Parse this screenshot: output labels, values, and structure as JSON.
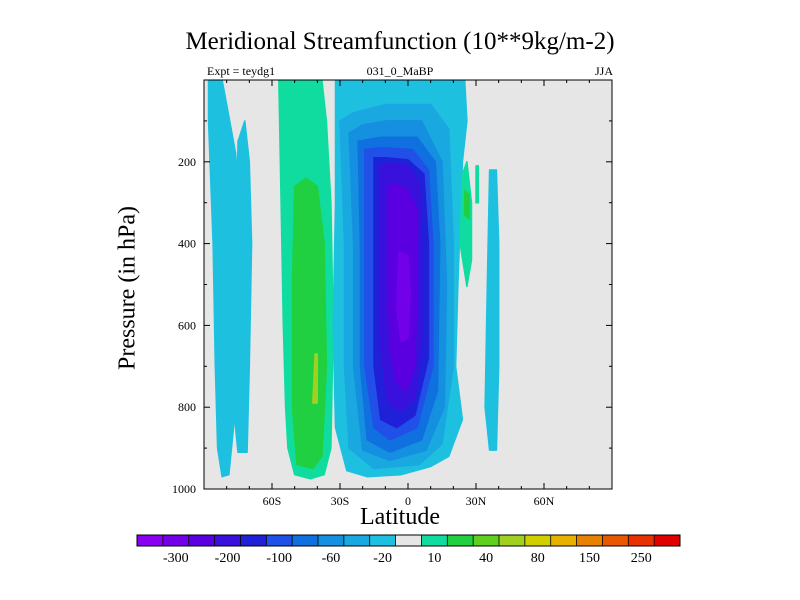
{
  "chart_data": {
    "type": "heatmap",
    "title": "Meridional Streamfunction (10**9kg/m-2)",
    "subtitle_left": "Expt = teydg1",
    "subtitle_center": "031_0_MaBP",
    "subtitle_right": "JJA",
    "xlabel": "Latitude",
    "ylabel": "Pressure (in hPa)",
    "x_range": [
      -90,
      90
    ],
    "y_range": [
      1000,
      0
    ],
    "x_ticks": [
      {
        "value": -60,
        "label": "60S"
      },
      {
        "value": -30,
        "label": "30S"
      },
      {
        "value": 0,
        "label": "0"
      },
      {
        "value": 30,
        "label": "30N"
      },
      {
        "value": 60,
        "label": "60N"
      }
    ],
    "y_ticks": [
      {
        "value": 200,
        "label": "200"
      },
      {
        "value": 400,
        "label": "400"
      },
      {
        "value": 600,
        "label": "600"
      },
      {
        "value": 800,
        "label": "800"
      },
      {
        "value": 1000,
        "label": "1000"
      }
    ],
    "colorbar": {
      "colors": [
        "#8a00f0",
        "#7200e8",
        "#5a00e0",
        "#3a10dc",
        "#2020d8",
        "#2050e8",
        "#1070e0",
        "#1590e0",
        "#1aa8e0",
        "#1ec0e0",
        "#e6e6e6",
        "#10dca0",
        "#20d040",
        "#60d020",
        "#a0d020",
        "#d0d000",
        "#e8b000",
        "#e88000",
        "#e85800",
        "#e83000",
        "#e00000"
      ],
      "labels": [
        "-300",
        "-200",
        "-100",
        "-60",
        "-20",
        "10",
        "40",
        "80",
        "150",
        "250"
      ]
    },
    "regions": [
      {
        "name": "sh-ferrel-cyan",
        "level": 1,
        "color": "#1ec0e0",
        "outline": [
          [
            -88,
            100
          ],
          [
            -86,
            400
          ],
          [
            -85,
            700
          ],
          [
            -84,
            900
          ],
          [
            -82,
            970
          ],
          [
            -79,
            965
          ],
          [
            -77,
            850
          ],
          [
            -75,
            600
          ],
          [
            -74,
            350
          ],
          [
            -76,
            180
          ],
          [
            -80,
            60
          ],
          [
            -82,
            0
          ],
          [
            -88,
            0
          ]
        ]
      },
      {
        "name": "sh-ferrel-cyan-2",
        "level": 1,
        "color": "#1ec0e0",
        "outline": [
          [
            -75,
            150
          ],
          [
            -76,
            500
          ],
          [
            -77,
            800
          ],
          [
            -75,
            910
          ],
          [
            -71,
            910
          ],
          [
            -70,
            700
          ],
          [
            -69,
            400
          ],
          [
            -70,
            200
          ],
          [
            -72,
            100
          ]
        ]
      },
      {
        "name": "sh-hadley-teal",
        "level": 2,
        "color": "#10dca0",
        "outline": [
          [
            -57,
            0
          ],
          [
            -56,
            300
          ],
          [
            -55,
            600
          ],
          [
            -54,
            800
          ],
          [
            -53,
            900
          ],
          [
            -50,
            965
          ],
          [
            -43,
            975
          ],
          [
            -37,
            965
          ],
          [
            -34,
            900
          ],
          [
            -33,
            600
          ],
          [
            -34,
            300
          ],
          [
            -36,
            100
          ],
          [
            -38,
            0
          ]
        ]
      },
      {
        "name": "sh-hadley-green",
        "level": 3,
        "color": "#20d040",
        "outline": [
          [
            -50,
            260
          ],
          [
            -51,
            500
          ],
          [
            -51,
            800
          ],
          [
            -49,
            940
          ],
          [
            -42,
            950
          ],
          [
            -38,
            920
          ],
          [
            -36,
            700
          ],
          [
            -37,
            400
          ],
          [
            -40,
            260
          ],
          [
            -45,
            240
          ]
        ]
      },
      {
        "name": "sh-hadley-yellowgreen",
        "level": 4,
        "color": "#a0d020",
        "outline": [
          [
            -41,
            670
          ],
          [
            -42,
            790
          ],
          [
            -40,
            790
          ],
          [
            -40,
            670
          ]
        ]
      },
      {
        "name": "cell-cyan",
        "level": -1,
        "color": "#1ec0e0",
        "outline": [
          [
            -32,
            0
          ],
          [
            -32,
            300
          ],
          [
            -33,
            600
          ],
          [
            -32,
            850
          ],
          [
            -27,
            955
          ],
          [
            -18,
            970
          ],
          [
            -3,
            965
          ],
          [
            10,
            945
          ],
          [
            18,
            920
          ],
          [
            24,
            830
          ],
          [
            21,
            700
          ],
          [
            22,
            500
          ],
          [
            24,
            200
          ],
          [
            26,
            100
          ],
          [
            25,
            0
          ]
        ]
      },
      {
        "name": "cell-lightblue",
        "level": -2,
        "color": "#1aa8e0",
        "outline": [
          [
            -30,
            100
          ],
          [
            -28,
            400
          ],
          [
            -28,
            700
          ],
          [
            -26,
            900
          ],
          [
            -15,
            950
          ],
          [
            5,
            940
          ],
          [
            15,
            890
          ],
          [
            20,
            700
          ],
          [
            20,
            400
          ],
          [
            18,
            120
          ],
          [
            10,
            60
          ],
          [
            -10,
            60
          ],
          [
            -24,
            80
          ]
        ]
      },
      {
        "name": "cell-blue2",
        "level": -3,
        "color": "#1590e0",
        "outline": [
          [
            -26,
            130
          ],
          [
            -24,
            400
          ],
          [
            -24,
            700
          ],
          [
            -20,
            905
          ],
          [
            -8,
            930
          ],
          [
            8,
            905
          ],
          [
            16,
            800
          ],
          [
            17,
            500
          ],
          [
            15,
            200
          ],
          [
            6,
            100
          ],
          [
            -10,
            100
          ],
          [
            -20,
            110
          ]
        ]
      },
      {
        "name": "cell-blue3",
        "level": -4,
        "color": "#1070e0",
        "outline": [
          [
            -22,
            150
          ],
          [
            -21,
            400
          ],
          [
            -21,
            700
          ],
          [
            -18,
            880
          ],
          [
            -8,
            910
          ],
          [
            6,
            880
          ],
          [
            13,
            760
          ],
          [
            14,
            400
          ],
          [
            12,
            200
          ],
          [
            4,
            140
          ],
          [
            -12,
            140
          ]
        ]
      },
      {
        "name": "cell-blue4",
        "level": -5,
        "color": "#2050e8",
        "outline": [
          [
            -19,
            170
          ],
          [
            -19,
            400
          ],
          [
            -19,
            700
          ],
          [
            -15,
            850
          ],
          [
            -8,
            880
          ],
          [
            4,
            850
          ],
          [
            11,
            700
          ],
          [
            11,
            400
          ],
          [
            9,
            220
          ],
          [
            2,
            170
          ],
          [
            -12,
            165
          ]
        ]
      },
      {
        "name": "cell-blue5",
        "level": -6,
        "color": "#2020d8",
        "outline": [
          [
            -15,
            190
          ],
          [
            -15,
            400
          ],
          [
            -15,
            700
          ],
          [
            -12,
            830
          ],
          [
            -5,
            850
          ],
          [
            3,
            820
          ],
          [
            9,
            680
          ],
          [
            9,
            400
          ],
          [
            7,
            230
          ],
          [
            0,
            195
          ],
          [
            -10,
            190
          ]
        ]
      },
      {
        "name": "cell-indigo",
        "level": -7,
        "color": "#3a10dc",
        "outline": [
          [
            -12,
            210
          ],
          [
            -12,
            400
          ],
          [
            -12,
            650
          ],
          [
            -9,
            790
          ],
          [
            -3,
            810
          ],
          [
            3,
            780
          ],
          [
            6,
            650
          ],
          [
            6,
            400
          ],
          [
            5,
            250
          ],
          [
            0,
            210
          ],
          [
            -8,
            205
          ]
        ]
      },
      {
        "name": "cell-violet",
        "level": -8,
        "color": "#5a00e0",
        "outline": [
          [
            -9,
            260
          ],
          [
            -9,
            450
          ],
          [
            -8,
            650
          ],
          [
            -5,
            740
          ],
          [
            -1,
            760
          ],
          [
            3,
            700
          ],
          [
            4,
            500
          ],
          [
            4,
            320
          ],
          [
            0,
            270
          ],
          [
            -5,
            255
          ]
        ]
      },
      {
        "name": "cell-purple",
        "level": -9,
        "color": "#7200e8",
        "outline": [
          [
            -4,
            420
          ],
          [
            -5,
            560
          ],
          [
            -3,
            640
          ],
          [
            0,
            630
          ],
          [
            1,
            520
          ],
          [
            0,
            430
          ]
        ]
      },
      {
        "name": "nh-teal-patch",
        "level": 2,
        "color": "#10dca0",
        "outline": [
          [
            24,
            230
          ],
          [
            23,
            400
          ],
          [
            26,
            505
          ],
          [
            28,
            440
          ],
          [
            28,
            300
          ],
          [
            26,
            200
          ]
        ]
      },
      {
        "name": "nh-green-patch",
        "level": 3,
        "color": "#20d040",
        "outline": [
          [
            25,
            270
          ],
          [
            25,
            330
          ],
          [
            27,
            340
          ],
          [
            27,
            280
          ]
        ]
      },
      {
        "name": "nh-cyan-strip",
        "level": -1,
        "color": "#1ec0e0",
        "outline": [
          [
            36,
            220
          ],
          [
            35,
            500
          ],
          [
            34,
            800
          ],
          [
            36,
            905
          ],
          [
            39,
            905
          ],
          [
            40,
            700
          ],
          [
            40,
            400
          ],
          [
            39,
            220
          ]
        ]
      },
      {
        "name": "nh-teal-strip",
        "level": 2,
        "color": "#10dca0",
        "outline": [
          [
            30,
            210
          ],
          [
            30,
            300
          ],
          [
            31,
            300
          ],
          [
            31,
            210
          ]
        ]
      }
    ]
  }
}
